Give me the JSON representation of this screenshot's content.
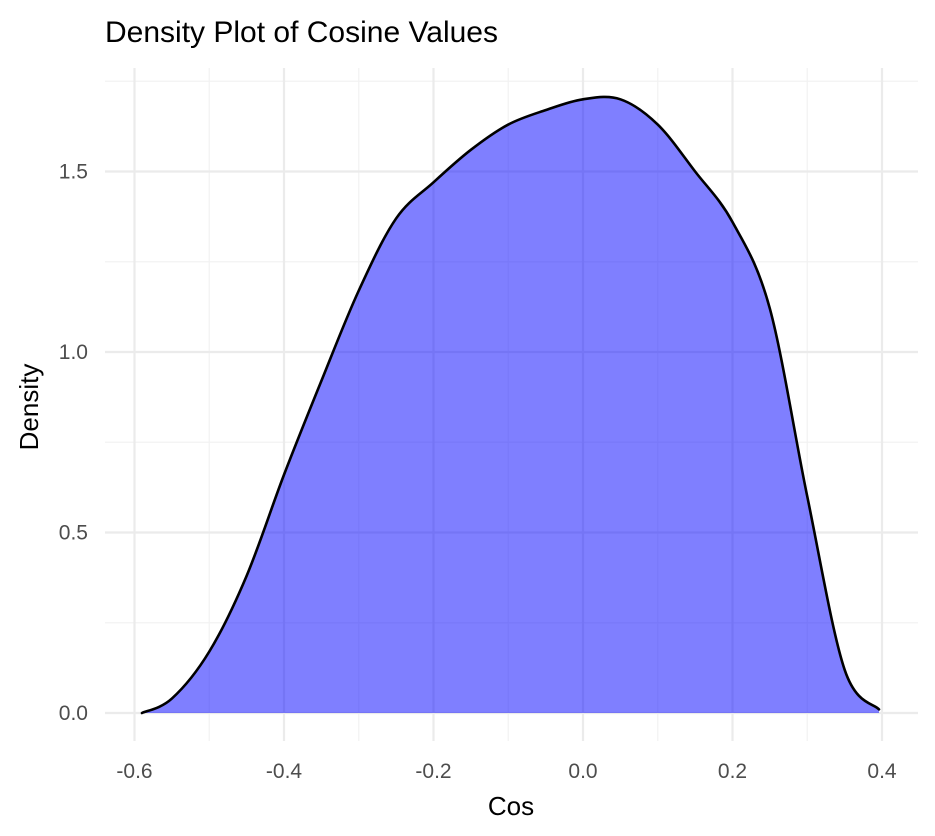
{
  "chart_data": {
    "type": "area",
    "title": "Density Plot of Cosine Values",
    "xlabel": "Cos",
    "ylabel": "Density",
    "xlim": [
      -0.6,
      0.4
    ],
    "ylim": [
      0,
      1.75
    ],
    "x_ticks": [
      -0.6,
      -0.4,
      -0.2,
      0.0,
      0.2,
      0.4
    ],
    "x_tick_labels": [
      "-0.6",
      "-0.4",
      "-0.2",
      "0.0",
      "0.2",
      "0.4"
    ],
    "y_ticks": [
      0.0,
      0.5,
      1.0,
      1.5
    ],
    "y_tick_labels": [
      "0.0",
      "0.5",
      "1.0",
      "1.5"
    ],
    "grid": true,
    "fill_color": "#0000ff",
    "fill_alpha": 0.5,
    "line_color": "#000000",
    "series": [
      {
        "x": [
          -0.59,
          -0.55,
          -0.5,
          -0.45,
          -0.4,
          -0.35,
          -0.3,
          -0.25,
          -0.2,
          -0.15,
          -0.1,
          -0.05,
          0.0,
          0.05,
          0.1,
          0.15,
          0.2,
          0.25,
          0.3,
          0.35,
          0.396
        ],
        "y": [
          0.0,
          0.04,
          0.17,
          0.38,
          0.66,
          0.92,
          1.17,
          1.37,
          1.47,
          1.56,
          1.63,
          1.67,
          1.7,
          1.7,
          1.63,
          1.5,
          1.36,
          1.12,
          0.6,
          0.12,
          0.01
        ]
      }
    ]
  }
}
